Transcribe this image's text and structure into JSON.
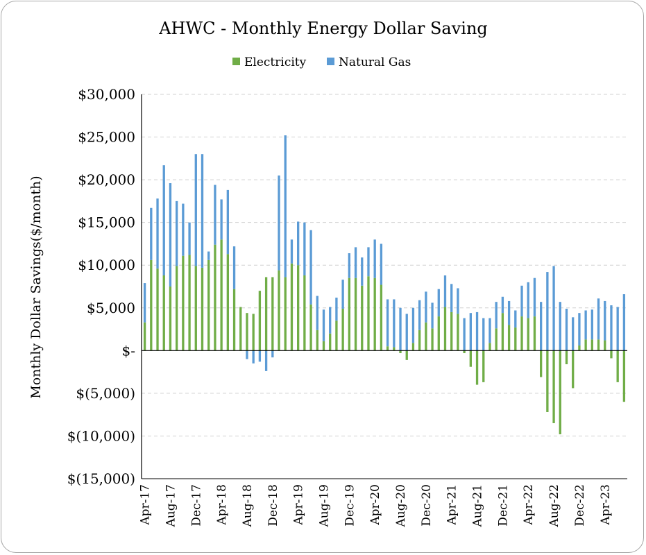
{
  "chart_data": {
    "type": "bar",
    "stacked": true,
    "title": "AHWC - Monthly Energy Dollar Saving",
    "ylabel": "Monthly Dollar Savings($/month)",
    "xlabel": "",
    "ylim": [
      -15000,
      30000
    ],
    "yticks": [
      30000,
      25000,
      20000,
      15000,
      10000,
      5000,
      0,
      -5000,
      -10000,
      -15000
    ],
    "ytick_labels": [
      "$30,000",
      "$25,000",
      "$20,000",
      "$15,000",
      "$10,000",
      "$5,000",
      "$-",
      "$(5,000)",
      "$(10,000)",
      "$(15,000)"
    ],
    "grid": true,
    "legend_position": "top-center",
    "colors": {
      "Electricity": "#70ad47",
      "Natural Gas": "#5b9bd5"
    },
    "x_tick_labels": [
      "Apr-17",
      "Aug-17",
      "Dec-17",
      "Apr-18",
      "Aug-18",
      "Dec-18",
      "Apr-19",
      "Aug-19",
      "Dec-19",
      "Apr-20",
      "Aug-20",
      "Dec-20",
      "Apr-21",
      "Aug-21",
      "Dec-21",
      "Apr-22",
      "Aug-22",
      "Dec-22",
      "Apr-23"
    ],
    "categories": [
      "Apr-17",
      "May-17",
      "Jun-17",
      "Jul-17",
      "Aug-17",
      "Sep-17",
      "Oct-17",
      "Nov-17",
      "Dec-17",
      "Jan-18",
      "Feb-18",
      "Mar-18",
      "Apr-18",
      "May-18",
      "Jun-18",
      "Jul-18",
      "Aug-18",
      "Sep-18",
      "Oct-18",
      "Nov-18",
      "Dec-18",
      "Jan-19",
      "Feb-19",
      "Mar-19",
      "Apr-19",
      "May-19",
      "Jun-19",
      "Jul-19",
      "Aug-19",
      "Sep-19",
      "Oct-19",
      "Nov-19",
      "Dec-19",
      "Jan-20",
      "Feb-20",
      "Mar-20",
      "Apr-20",
      "May-20",
      "Jun-20",
      "Jul-20",
      "Aug-20",
      "Sep-20",
      "Oct-20",
      "Nov-20",
      "Dec-20",
      "Jan-21",
      "Feb-21",
      "Mar-21",
      "Apr-21",
      "May-21",
      "Jun-21",
      "Jul-21",
      "Aug-21",
      "Sep-21",
      "Oct-21",
      "Nov-21",
      "Dec-21",
      "Jan-22",
      "Feb-22",
      "Mar-22",
      "Apr-22",
      "May-22",
      "Jun-22",
      "Jul-22",
      "Aug-22",
      "Sep-22",
      "Oct-22",
      "Nov-22",
      "Dec-22",
      "Jan-23",
      "Feb-23",
      "Mar-23",
      "Apr-23",
      "May-23",
      "Jun-23",
      "Jul-23"
    ],
    "series": [
      {
        "name": "Electricity",
        "values": [
          3300,
          10600,
          9600,
          8800,
          7500,
          9900,
          11100,
          11200,
          9900,
          9700,
          10600,
          12400,
          13000,
          11300,
          7200,
          5100,
          4400,
          4300,
          7000,
          8600,
          8600,
          9400,
          8600,
          10200,
          10000,
          8800,
          5400,
          2400,
          1100,
          2000,
          3500,
          4900,
          8500,
          8500,
          7600,
          8700,
          8500,
          7700,
          500,
          400,
          -300,
          -1100,
          900,
          2400,
          3300,
          2600,
          4000,
          5100,
          4500,
          4300,
          -300,
          -1900,
          -4000,
          -3700,
          900,
          2600,
          4400,
          3000,
          2700,
          4000,
          3800,
          4000,
          -3100,
          -7200,
          -8500,
          -9800,
          -1600,
          -4400,
          600,
          1300,
          1300,
          1300,
          1200,
          -900,
          -3700,
          -6000
        ]
      },
      {
        "name": "Natural Gas",
        "values": [
          4600,
          6100,
          8200,
          12900,
          12100,
          7600,
          6100,
          3800,
          13100,
          13300,
          1000,
          7000,
          4700,
          7500,
          5000,
          0,
          -1000,
          -1500,
          -1300,
          -2400,
          -800,
          11100,
          16600,
          2800,
          5100,
          6200,
          8700,
          4000,
          3700,
          3100,
          2700,
          3400,
          2900,
          3600,
          3300,
          3400,
          4500,
          4800,
          5500,
          5600,
          5000,
          4300,
          4100,
          3500,
          3600,
          3000,
          3200,
          3700,
          3300,
          3000,
          3800,
          4400,
          4500,
          3800,
          2900,
          3100,
          1900,
          2800,
          2000,
          3600,
          4200,
          4500,
          5700,
          9200,
          9900,
          5700,
          4900,
          3900,
          3800,
          3400,
          3500,
          4800,
          4600,
          5300,
          5100,
          6600
        ]
      }
    ]
  }
}
